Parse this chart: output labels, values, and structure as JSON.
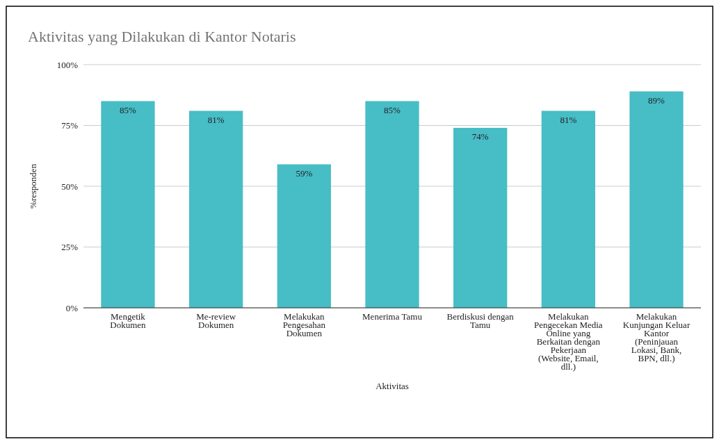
{
  "chart_data": {
    "type": "bar",
    "title": "Aktivitas yang Dilakukan di Kantor Notaris",
    "xlabel": "Aktivitas",
    "ylabel": "%responden",
    "categories": [
      "Mengetik Dokumen",
      "Me-review Dokumen",
      "Melakukan Pengesahan Dokumen",
      "Menerima Tamu",
      "Berdiskusi dengan Tamu",
      "Melakukan Pengecekan Media Online yang Berkaitan dengan Pekerjaan (Website, Email, dll.)",
      "Melakukan Kunjungan Keluar Kantor (Peninjauan Lokasi, Bank, BPN, dll.)"
    ],
    "values": [
      85,
      81,
      59,
      85,
      74,
      81,
      89
    ],
    "color": "#47bdc6",
    "value_labels": [
      "85%",
      "81%",
      "59%",
      "85%",
      "74%",
      "81%",
      "89%"
    ],
    "ylim": [
      0,
      100
    ],
    "yticks": [
      {
        "value": 0,
        "label": "0%"
      },
      {
        "value": 25,
        "label": "25%"
      },
      {
        "value": 50,
        "label": "50%"
      },
      {
        "value": 75,
        "label": "75%"
      },
      {
        "value": 100,
        "label": "100%"
      }
    ],
    "grid": "y"
  }
}
